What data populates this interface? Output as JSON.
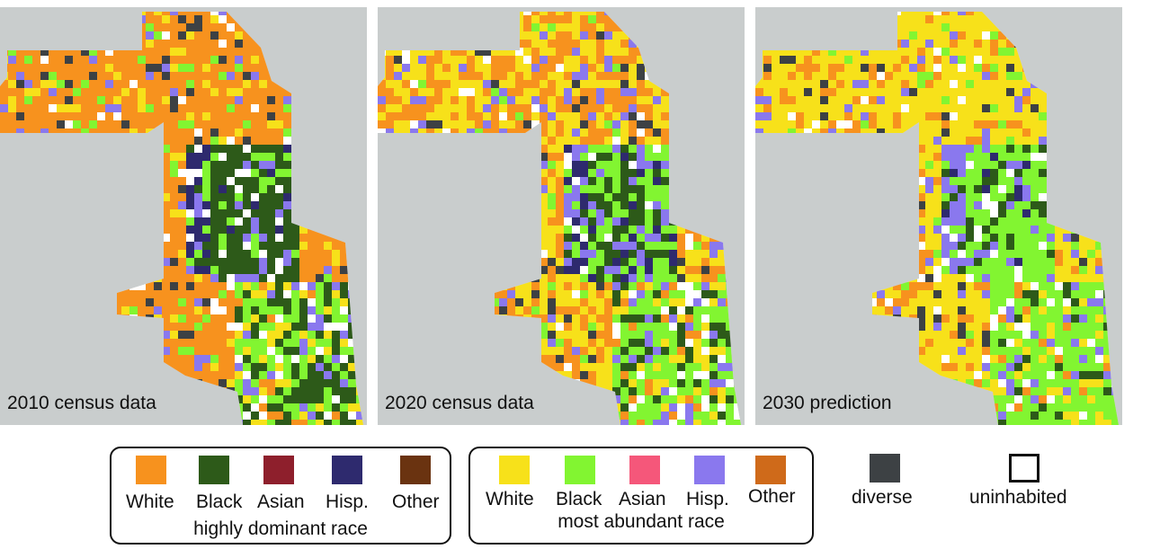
{
  "panels": [
    {
      "caption": "2010 census data",
      "palette": "dominant",
      "bias": 0
    },
    {
      "caption": "2020 census data",
      "palette": "mixed",
      "bias": 1
    },
    {
      "caption": "2030 prediction",
      "palette": "abundant",
      "bias": 2
    }
  ],
  "legend_dominant": {
    "title": "highly dominant race",
    "items": [
      {
        "label": "White",
        "color": "#f7921e"
      },
      {
        "label": "Black",
        "color": "#2d5a19"
      },
      {
        "label": "Asian",
        "color": "#8e1f2c"
      },
      {
        "label": "Hisp.",
        "color": "#2e2a6e"
      },
      {
        "label": "Other",
        "color": "#6a3310"
      }
    ]
  },
  "legend_abundant": {
    "title": "most abundant race",
    "items": [
      {
        "label": "White",
        "color": "#f7e11a"
      },
      {
        "label": "Black",
        "color": "#82f531"
      },
      {
        "label": "Asian",
        "color": "#f5577a"
      },
      {
        "label": "Hisp.",
        "color": "#8a78ee"
      },
      {
        "label": "Other",
        "color": "#cf6a1a"
      }
    ]
  },
  "diverse": {
    "label": "diverse",
    "color": "#3d4144"
  },
  "uninhabited": {
    "label": "uninhabited",
    "color": "#ffffff"
  },
  "background_color": "#c9cdcd"
}
